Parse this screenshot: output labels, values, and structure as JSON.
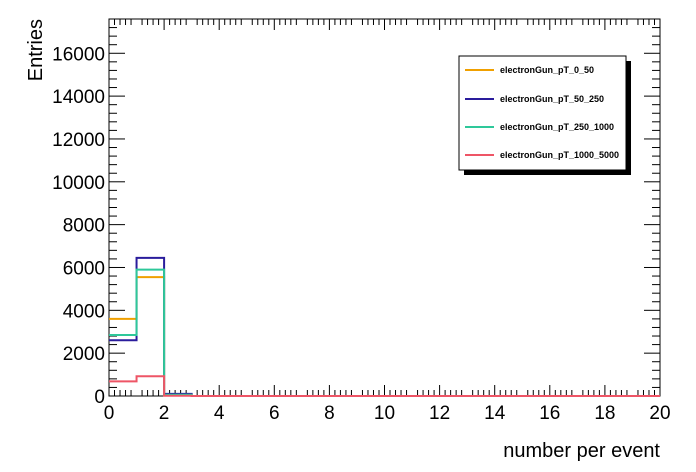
{
  "chart_data": {
    "type": "histogram",
    "xlabel": "number per event",
    "ylabel": "Entries",
    "xlim": [
      0,
      20
    ],
    "ylim": [
      0,
      17600
    ],
    "x_ticks": [
      0,
      2,
      4,
      6,
      8,
      10,
      12,
      14,
      16,
      18,
      20
    ],
    "y_ticks": [
      0,
      2000,
      4000,
      6000,
      8000,
      10000,
      12000,
      14000,
      16000
    ],
    "bin_edges": [
      0,
      1,
      2,
      3,
      4,
      5,
      6,
      7,
      8,
      9,
      10,
      11,
      12,
      13,
      14,
      15,
      16,
      17,
      18,
      19,
      20
    ],
    "series": [
      {
        "name": "electronGun_pT_0_50",
        "color": "#f0a000",
        "values": [
          3600,
          5550,
          30,
          0,
          0,
          0,
          0,
          0,
          0,
          0,
          0,
          0,
          0,
          0,
          0,
          0,
          0,
          0,
          0,
          0
        ]
      },
      {
        "name": "electronGun_pT_50_250",
        "color": "#2a1c9c",
        "values": [
          2600,
          6450,
          100,
          0,
          0,
          0,
          0,
          0,
          0,
          0,
          0,
          0,
          0,
          0,
          0,
          0,
          0,
          0,
          0,
          0
        ]
      },
      {
        "name": "electronGun_pT_250_1000",
        "color": "#2ec89a",
        "values": [
          2850,
          5900,
          60,
          0,
          0,
          0,
          0,
          0,
          0,
          0,
          0,
          0,
          0,
          0,
          0,
          0,
          0,
          0,
          0,
          0
        ]
      },
      {
        "name": "electronGun_pT_1000_5000",
        "color": "#ee5566",
        "values": [
          680,
          920,
          10,
          0,
          0,
          0,
          0,
          0,
          0,
          0,
          0,
          0,
          0,
          0,
          0,
          0,
          0,
          0,
          0,
          0
        ]
      }
    ],
    "legend_position": "top-right",
    "grid": false
  }
}
